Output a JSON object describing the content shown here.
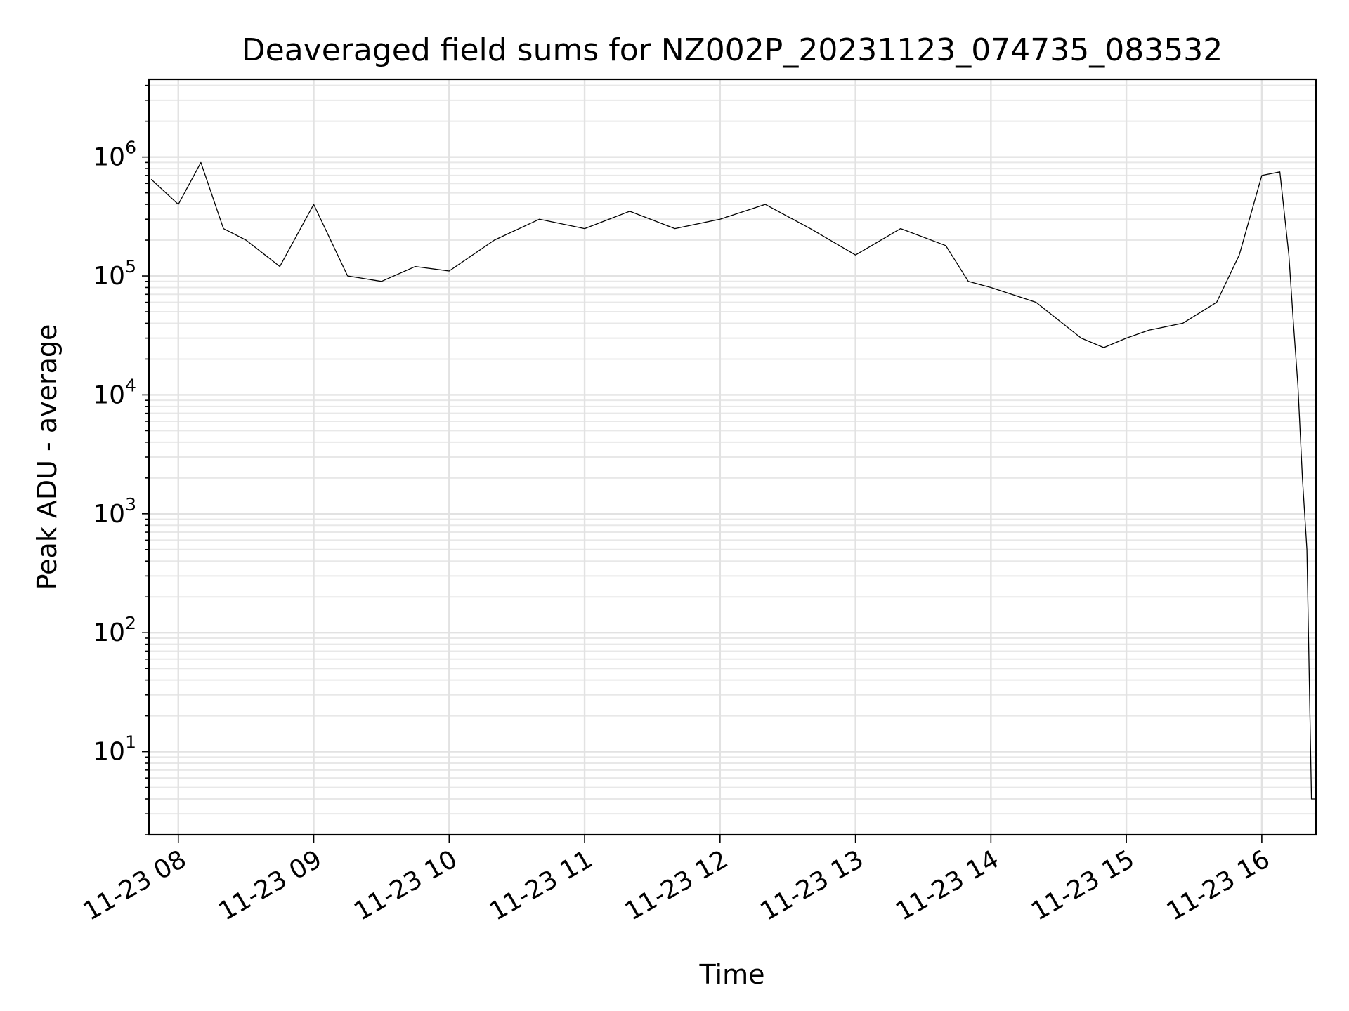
{
  "chart_data": {
    "type": "line",
    "title": "Deaveraged field sums for NZ002P_20231123_074735_083532",
    "xlabel": "Time",
    "ylabel": "Peak ADU - average",
    "yscale": "log",
    "grid": true,
    "grid_minor": true,
    "xlim": [
      "2023-11-23 07:47",
      "2023-11-23 16:24"
    ],
    "ylim": [
      2,
      4500000.0
    ],
    "x_ticks": [
      "11-23 08",
      "11-23 09",
      "11-23 10",
      "11-23 11",
      "11-23 12",
      "11-23 13",
      "11-23 14",
      "11-23 15",
      "11-23 16"
    ],
    "y_ticks": [
      {
        "base": "10",
        "exp": "1",
        "value": 10
      },
      {
        "base": "10",
        "exp": "2",
        "value": 100
      },
      {
        "base": "10",
        "exp": "3",
        "value": 1000
      },
      {
        "base": "10",
        "exp": "4",
        "value": 10000
      },
      {
        "base": "10",
        "exp": "5",
        "value": 100000
      },
      {
        "base": "10",
        "exp": "6",
        "value": 1000000
      }
    ],
    "series": [
      {
        "color": "#000000",
        "x": [
          "2023-11-23 07:48",
          "2023-11-23 08:00",
          "2023-11-23 08:10",
          "2023-11-23 08:20",
          "2023-11-23 08:30",
          "2023-11-23 08:45",
          "2023-11-23 09:00",
          "2023-11-23 09:15",
          "2023-11-23 09:30",
          "2023-11-23 09:45",
          "2023-11-23 10:00",
          "2023-11-23 10:20",
          "2023-11-23 10:40",
          "2023-11-23 11:00",
          "2023-11-23 11:20",
          "2023-11-23 11:40",
          "2023-11-23 12:00",
          "2023-11-23 12:20",
          "2023-11-23 12:40",
          "2023-11-23 13:00",
          "2023-11-23 13:20",
          "2023-11-23 13:40",
          "2023-11-23 13:50",
          "2023-11-23 14:00",
          "2023-11-23 14:20",
          "2023-11-23 14:40",
          "2023-11-23 14:50",
          "2023-11-23 15:00",
          "2023-11-23 15:10",
          "2023-11-23 15:25",
          "2023-11-23 15:40",
          "2023-11-23 15:50",
          "2023-11-23 16:00",
          "2023-11-23 16:08",
          "2023-11-23 16:12",
          "2023-11-23 16:14",
          "2023-11-23 16:16",
          "2023-11-23 16:18",
          "2023-11-23 16:20",
          "2023-11-23 16:22",
          "2023-11-23 16:24"
        ],
        "y": [
          650000,
          400000,
          900000,
          250000,
          200000,
          120000,
          400000,
          100000,
          90000,
          120000,
          110000,
          200000,
          300000,
          250000,
          350000,
          250000,
          300000,
          400000,
          250000,
          150000,
          250000,
          180000,
          90000,
          80000,
          60000,
          30000,
          25000,
          30000,
          35000,
          40000,
          60000,
          150000,
          700000,
          750000,
          150000,
          40000,
          12000,
          2000,
          500,
          4,
          4
        ]
      }
    ]
  }
}
